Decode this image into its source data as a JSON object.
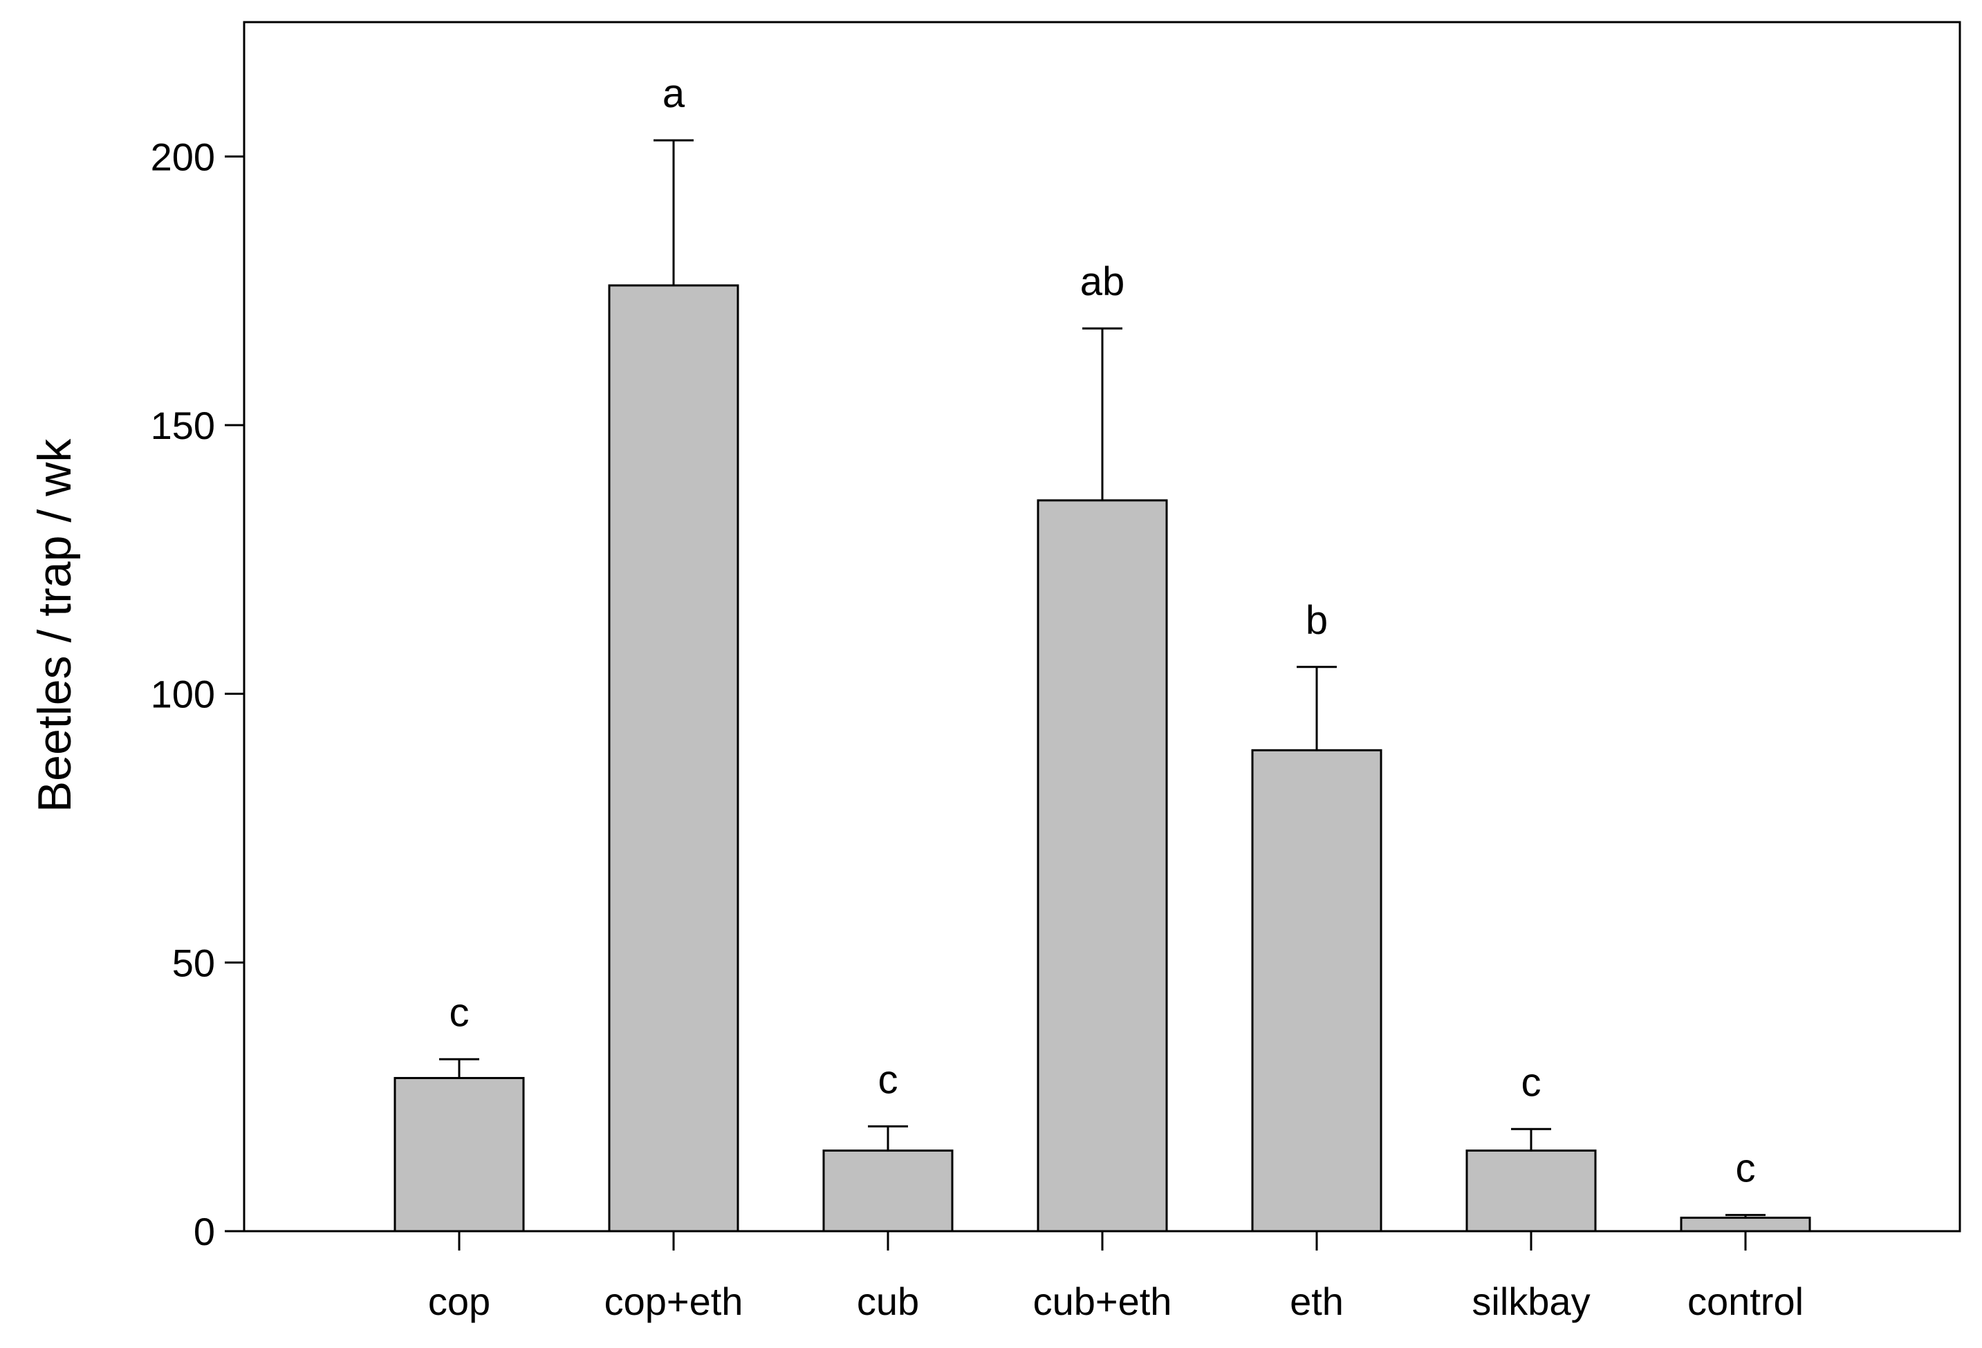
{
  "chart_data": {
    "type": "bar",
    "categories": [
      "cop",
      "cop+eth",
      "cub",
      "cub+eth",
      "eth",
      "silkbay",
      "control"
    ],
    "values": [
      28.5,
      176,
      15,
      136,
      89.5,
      15,
      2.5
    ],
    "errors": [
      3.5,
      27,
      4.5,
      32,
      15.5,
      4,
      0.5
    ],
    "significance_letters": [
      "c",
      "a",
      "c",
      "ab",
      "b",
      "c",
      "c"
    ],
    "title": "",
    "xlabel": "",
    "ylabel": "Beetles / trap / wk",
    "ylim": [
      0,
      225
    ],
    "yticks": [
      0,
      50,
      100,
      150,
      200
    ],
    "ytick_labels": [
      "0",
      "50",
      "100",
      "150",
      "200"
    ],
    "grid": false,
    "legend": "none",
    "colors": {
      "bar_fill": "#c0c0c0",
      "bar_stroke": "#000000",
      "axis": "#000000",
      "background": "#ffffff"
    }
  }
}
